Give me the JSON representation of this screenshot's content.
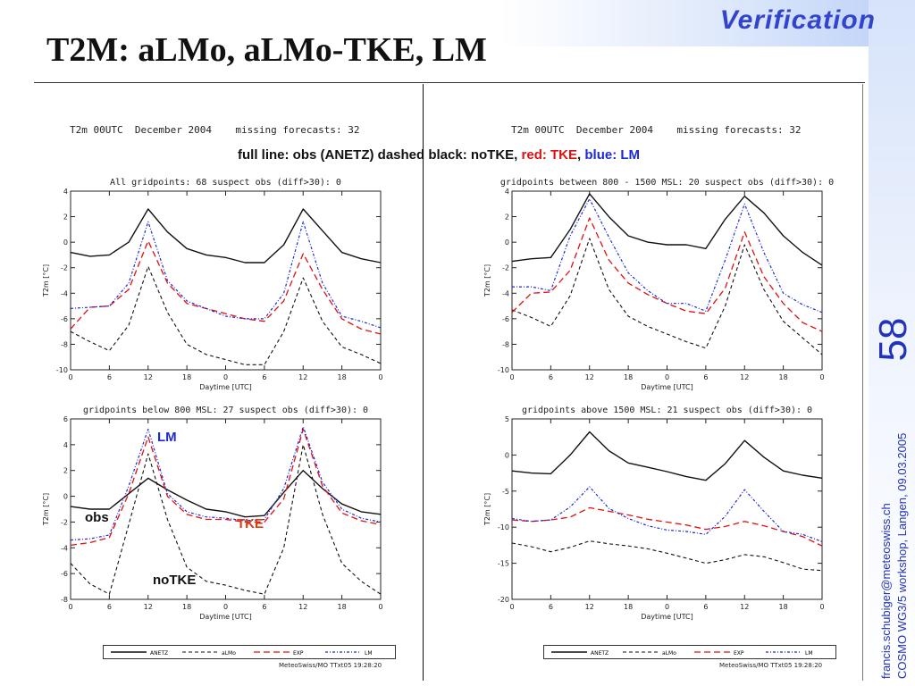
{
  "slide": {
    "header_label": "Verification",
    "title": "T2M: aLMo, aLMo-TKE, LM",
    "slide_number": "58",
    "credit_line1": "francis.schubiger@meteoswiss.ch",
    "credit_line2": "COSMO WG3/5 workshop, Langen, 09.03.2005",
    "top_left_header": "T2m 00UTC  December 2004    missing forecasts: 32",
    "top_right_header": "T2m 00UTC  December 2004    missing forecasts: 32",
    "caption": {
      "part1": "full line: obs (ANETZ)  dashed black: noTKE, ",
      "part2": "red: TKE",
      "part3": ", ",
      "part4": "blue: LM"
    },
    "annotations": {
      "lm": "LM",
      "obs": "obs",
      "tke": "TKE",
      "notke": "noTKE"
    },
    "legend_items": [
      "ANETZ",
      "aLMo",
      "EXP",
      "LM"
    ],
    "footer_left": "MeteoSwiss/MO  TTxt05 19:28:20",
    "footer_right": "MeteoSwiss/MO  TTxt05 19:28:20",
    "colors": {
      "obs": "#111111",
      "notke": "#111111",
      "tke": "#e01010",
      "lm": "#1a2ad8",
      "accent": "#2233bb"
    }
  },
  "chart_data": [
    {
      "type": "line",
      "title": "All gridpoints: 68   suspect obs (diff>30): 0",
      "xlabel": "Daytime [UTC]",
      "ylabel": "T2m [°C]",
      "xticks": [
        "0",
        "6",
        "12",
        "18",
        "0",
        "6",
        "12",
        "18",
        "0"
      ],
      "ylim": [
        -10,
        4
      ],
      "yticks": [
        4,
        2,
        0,
        -2,
        -4,
        -6,
        -8,
        -10
      ],
      "x": [
        0,
        3,
        6,
        9,
        12,
        15,
        18,
        21,
        24,
        27,
        30,
        33,
        36,
        39,
        42,
        45,
        48
      ],
      "series": [
        {
          "name": "obs (ANETZ)",
          "values": [
            -0.8,
            -1.1,
            -1.0,
            0.0,
            2.6,
            0.8,
            -0.5,
            -1.0,
            -1.2,
            -1.6,
            -1.6,
            -0.2,
            2.6,
            0.9,
            -0.8,
            -1.3,
            -1.6
          ]
        },
        {
          "name": "noTKE",
          "values": [
            -7.0,
            -7.8,
            -8.5,
            -6.5,
            -1.9,
            -5.5,
            -8.0,
            -8.8,
            -9.2,
            -9.6,
            -9.6,
            -7.0,
            -2.8,
            -6.2,
            -8.2,
            -8.8,
            -9.5
          ]
        },
        {
          "name": "TKE",
          "values": [
            -6.8,
            -5.1,
            -5.0,
            -3.7,
            0.1,
            -3.2,
            -4.8,
            -5.2,
            -5.6,
            -6.0,
            -6.2,
            -4.6,
            -0.9,
            -3.7,
            -6.0,
            -6.8,
            -7.2
          ]
        },
        {
          "name": "LM",
          "values": [
            -5.2,
            -5.1,
            -5.0,
            -3.2,
            1.6,
            -3.0,
            -4.6,
            -5.2,
            -5.8,
            -6.0,
            -6.0,
            -4.0,
            1.6,
            -3.2,
            -5.8,
            -6.2,
            -6.7
          ]
        }
      ]
    },
    {
      "type": "line",
      "title": "gridpoints between 800 - 1500 MSL: 20   suspect obs (diff>30): 0",
      "xlabel": "Daytime [UTC]",
      "ylabel": "T2m [°C]",
      "xticks": [
        "0",
        "6",
        "12",
        "18",
        "0",
        "6",
        "12",
        "18",
        "0"
      ],
      "ylim": [
        -10,
        4
      ],
      "yticks": [
        4,
        2,
        0,
        -2,
        -4,
        -6,
        -8,
        -10
      ],
      "x": [
        0,
        3,
        6,
        9,
        12,
        15,
        18,
        21,
        24,
        27,
        30,
        33,
        36,
        39,
        42,
        45,
        48
      ],
      "series": [
        {
          "name": "obs (ANETZ)",
          "values": [
            -1.5,
            -1.3,
            -1.2,
            1.0,
            3.8,
            2.0,
            0.5,
            0.0,
            -0.2,
            -0.2,
            -0.5,
            1.8,
            3.6,
            2.3,
            0.5,
            -0.8,
            -1.8
          ]
        },
        {
          "name": "noTKE",
          "values": [
            -5.3,
            -5.9,
            -6.6,
            -4.2,
            0.3,
            -3.7,
            -5.8,
            -6.6,
            -7.2,
            -7.8,
            -8.3,
            -5.0,
            -0.2,
            -3.7,
            -6.2,
            -7.5,
            -8.8
          ]
        },
        {
          "name": "TKE",
          "values": [
            -5.5,
            -4.0,
            -3.9,
            -2.2,
            1.9,
            -1.4,
            -3.2,
            -4.1,
            -4.8,
            -5.4,
            -5.6,
            -3.6,
            0.8,
            -2.7,
            -4.8,
            -6.3,
            -7.0
          ]
        },
        {
          "name": "LM",
          "values": [
            -3.5,
            -3.5,
            -3.8,
            0.5,
            3.4,
            0.4,
            -2.4,
            -3.8,
            -4.8,
            -4.8,
            -5.4,
            -1.4,
            3.0,
            -0.8,
            -4.0,
            -4.9,
            -5.5
          ]
        }
      ]
    },
    {
      "type": "line",
      "title": "gridpoints below 800 MSL: 27   suspect obs (diff>30): 0",
      "xlabel": "Daytime [UTC]",
      "ylabel": "T2m [°C]",
      "xticks": [
        "0",
        "6",
        "12",
        "18",
        "0",
        "6",
        "12",
        "18",
        "0"
      ],
      "ylim": [
        -8,
        6
      ],
      "yticks": [
        6,
        4,
        2,
        0,
        -2,
        -4,
        -6,
        -8
      ],
      "x": [
        0,
        3,
        6,
        9,
        12,
        15,
        18,
        21,
        24,
        27,
        30,
        33,
        36,
        39,
        42,
        45,
        48
      ],
      "series": [
        {
          "name": "obs (ANETZ)",
          "values": [
            -0.8,
            -1.0,
            -1.0,
            0.2,
            1.4,
            0.5,
            -0.3,
            -1.0,
            -1.2,
            -1.6,
            -1.5,
            0.3,
            2.0,
            0.6,
            -0.6,
            -1.2,
            -1.4
          ]
        },
        {
          "name": "noTKE",
          "values": [
            -5.2,
            -6.8,
            -7.6,
            -2.2,
            3.3,
            -1.8,
            -5.5,
            -6.6,
            -6.9,
            -7.3,
            -7.6,
            -4.0,
            4.0,
            -1.4,
            -5.2,
            -6.6,
            -7.6
          ]
        },
        {
          "name": "TKE",
          "values": [
            -3.8,
            -3.6,
            -3.2,
            0.2,
            4.6,
            0.0,
            -1.4,
            -1.8,
            -1.8,
            -2.0,
            -2.0,
            -0.2,
            5.2,
            0.8,
            -1.3,
            -1.9,
            -2.2
          ]
        },
        {
          "name": "LM",
          "values": [
            -3.4,
            -3.3,
            -3.0,
            0.8,
            5.2,
            0.2,
            -1.2,
            -1.6,
            -1.7,
            -1.9,
            -1.8,
            0.6,
            5.4,
            1.1,
            -1.0,
            -1.7,
            -2.0
          ]
        }
      ]
    },
    {
      "type": "line",
      "title": "gridpoints above 1500 MSL: 21   suspect obs (diff>30): 0",
      "xlabel": "Daytime [UTC]",
      "ylabel": "T2m [°C]",
      "xticks": [
        "0",
        "6",
        "12",
        "18",
        "0",
        "6",
        "12",
        "18",
        "0"
      ],
      "ylim": [
        -20,
        5
      ],
      "yticks": [
        5,
        0,
        -5,
        -10,
        -15,
        -20
      ],
      "x": [
        0,
        3,
        6,
        9,
        12,
        15,
        18,
        21,
        24,
        27,
        30,
        33,
        36,
        39,
        42,
        45,
        48
      ],
      "series": [
        {
          "name": "obs (ANETZ)",
          "values": [
            -2.2,
            -2.5,
            -2.6,
            0.0,
            3.2,
            0.6,
            -1.1,
            -1.7,
            -2.3,
            -3.0,
            -3.5,
            -1.2,
            2.0,
            -0.3,
            -2.2,
            -2.8,
            -3.2
          ]
        },
        {
          "name": "noTKE",
          "values": [
            -12.2,
            -12.7,
            -13.4,
            -12.8,
            -11.9,
            -12.3,
            -12.6,
            -13.0,
            -13.6,
            -14.3,
            -15.0,
            -14.5,
            -13.8,
            -14.1,
            -14.9,
            -15.8,
            -16.0
          ]
        },
        {
          "name": "TKE",
          "values": [
            -9.0,
            -9.2,
            -9.0,
            -8.6,
            -7.3,
            -7.8,
            -8.3,
            -8.9,
            -9.3,
            -9.7,
            -10.3,
            -9.9,
            -9.2,
            -9.8,
            -10.6,
            -11.3,
            -12.6
          ]
        },
        {
          "name": "LM",
          "values": [
            -8.8,
            -9.2,
            -9.0,
            -7.2,
            -4.4,
            -7.4,
            -8.8,
            -9.8,
            -10.4,
            -10.6,
            -11.0,
            -8.5,
            -4.8,
            -7.8,
            -10.6,
            -11.0,
            -12.0
          ]
        }
      ]
    }
  ]
}
